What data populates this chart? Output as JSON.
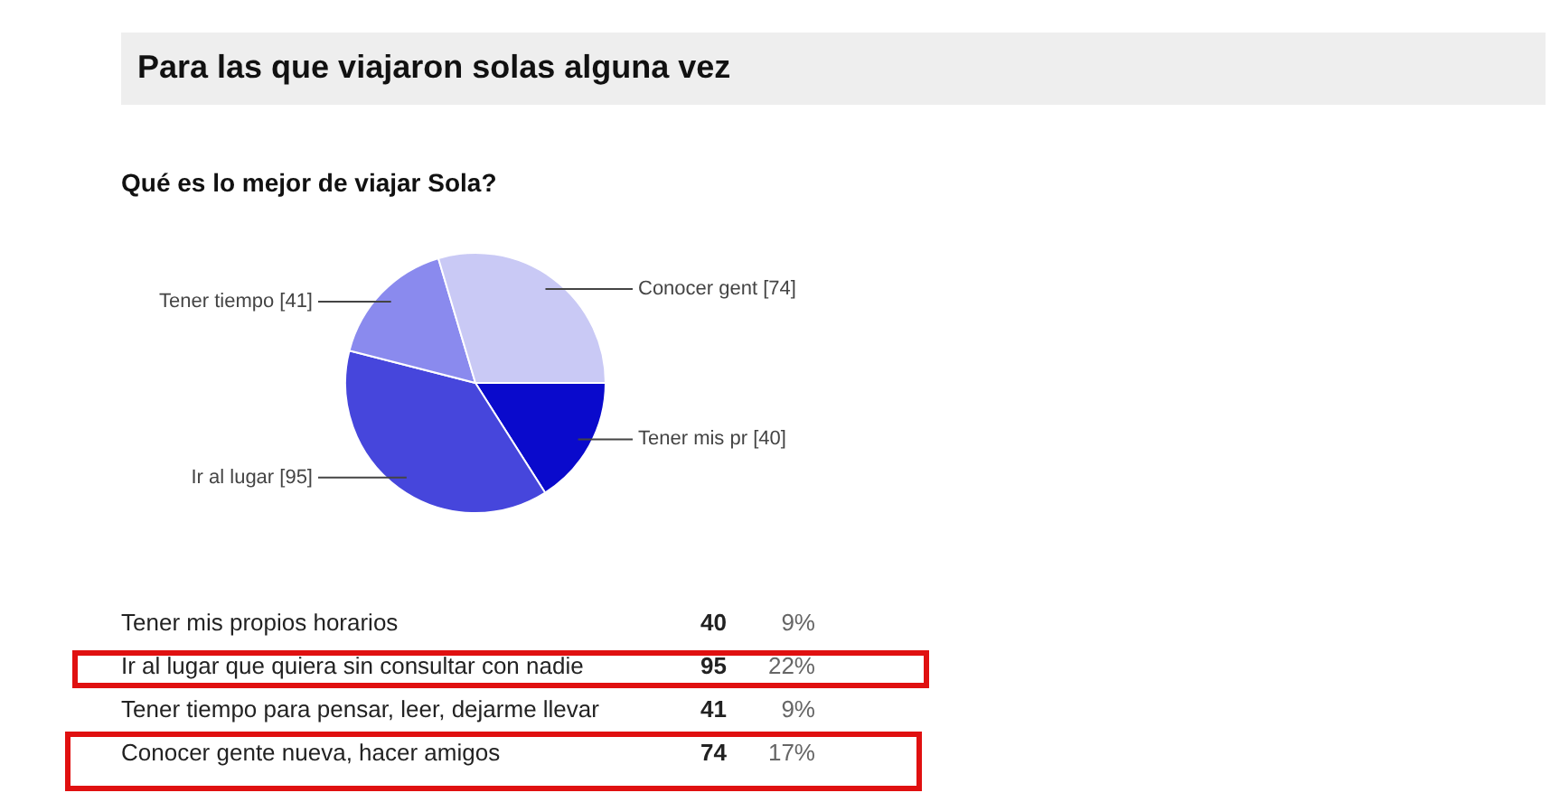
{
  "chart_data": [
    {
      "type": "pie",
      "title": "Para las que viajaron solas alguna vez",
      "subtitle": "Qué es lo mejor de viajar Sola?",
      "categories": [
        "Tener mis pr",
        "Ir al lugar",
        "Tener tiempo",
        "Conocer gent"
      ],
      "values": [
        40,
        95,
        41,
        74
      ],
      "colors": [
        "#0a0acc",
        "#4646dc",
        "#8a8aee",
        "#c9c9f5"
      ],
      "value_labels": [
        "[40]",
        "[95]",
        "[41]",
        "[74]"
      ]
    },
    {
      "type": "other",
      "annotations": [
        "Tener mis propios horarios",
        "40",
        "9%",
        "Ir al lugar que quiera sin consultar con nadie",
        "95",
        "22%",
        "Tener tiempo para pensar, leer, dejarme llevar",
        "41",
        "9%",
        "Conocer gente nueva, hacer amigos",
        "74",
        "17%"
      ]
    }
  ]
}
